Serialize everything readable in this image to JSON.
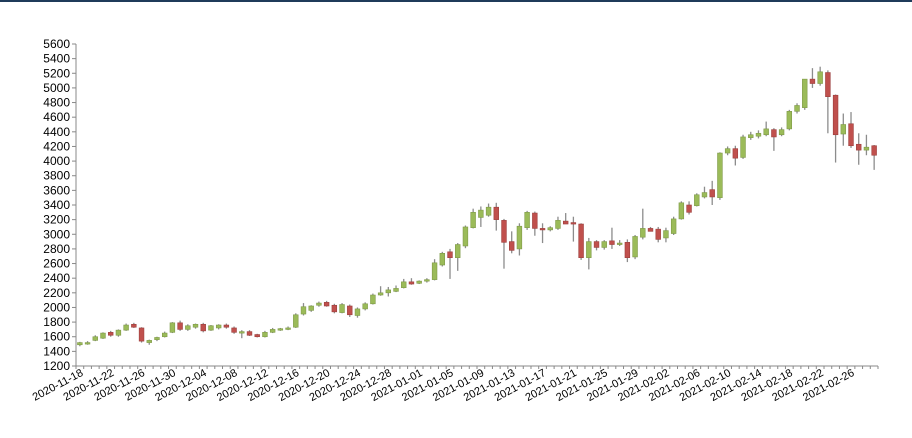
{
  "colors": {
    "top_rule": "#1f3b5a",
    "up": "#9bbb59",
    "up_border": "#7f9a48",
    "down": "#c0504d",
    "down_border": "#9c3f3d",
    "wick": "#8c8c8c",
    "axis": "#888888"
  },
  "chart_data": {
    "type": "candlestick",
    "title": "",
    "xlabel": "",
    "ylabel": "",
    "ylim": [
      1200,
      5600
    ],
    "ytick_step": 200,
    "grid": false,
    "legend": "none",
    "x_tick_labels": [
      "2020-11-18",
      "2020-11-22",
      "2020-11-26",
      "2020-11-30",
      "2020-12-04",
      "2020-12-08",
      "2020-12-12",
      "2020-12-16",
      "2020-12-20",
      "2020-12-24",
      "2020-12-28",
      "2021-01-01",
      "2021-01-05",
      "2021-01-09",
      "2021-01-13",
      "2021-01-17",
      "2021-01-21",
      "2021-01-25",
      "2021-01-29",
      "2021-02-02",
      "2021-02-06",
      "2021-02-10",
      "2021-02-14",
      "2021-02-18",
      "2021-02-22",
      "2021-02-26"
    ],
    "candles": [
      {
        "date": "2020-11-18",
        "open": 1490,
        "high": 1530,
        "low": 1470,
        "close": 1520
      },
      {
        "date": "2020-11-19",
        "open": 1500,
        "high": 1540,
        "low": 1490,
        "close": 1520
      },
      {
        "date": "2020-11-20",
        "open": 1550,
        "high": 1620,
        "low": 1540,
        "close": 1600
      },
      {
        "date": "2020-11-21",
        "open": 1580,
        "high": 1660,
        "low": 1570,
        "close": 1650
      },
      {
        "date": "2020-11-22",
        "open": 1660,
        "high": 1680,
        "low": 1600,
        "close": 1620
      },
      {
        "date": "2020-11-23",
        "open": 1620,
        "high": 1700,
        "low": 1600,
        "close": 1690
      },
      {
        "date": "2020-11-24",
        "open": 1690,
        "high": 1780,
        "low": 1680,
        "close": 1760
      },
      {
        "date": "2020-11-25",
        "open": 1770,
        "high": 1790,
        "low": 1720,
        "close": 1730
      },
      {
        "date": "2020-11-26",
        "open": 1720,
        "high": 1730,
        "low": 1520,
        "close": 1540
      },
      {
        "date": "2020-11-27",
        "open": 1520,
        "high": 1560,
        "low": 1490,
        "close": 1550
      },
      {
        "date": "2020-11-28",
        "open": 1560,
        "high": 1600,
        "low": 1540,
        "close": 1590
      },
      {
        "date": "2020-11-29",
        "open": 1600,
        "high": 1670,
        "low": 1590,
        "close": 1650
      },
      {
        "date": "2020-11-30",
        "open": 1660,
        "high": 1800,
        "low": 1650,
        "close": 1790
      },
      {
        "date": "2020-12-01",
        "open": 1790,
        "high": 1820,
        "low": 1680,
        "close": 1700
      },
      {
        "date": "2020-12-02",
        "open": 1700,
        "high": 1770,
        "low": 1680,
        "close": 1750
      },
      {
        "date": "2020-12-03",
        "open": 1730,
        "high": 1780,
        "low": 1710,
        "close": 1770
      },
      {
        "date": "2020-12-04",
        "open": 1770,
        "high": 1790,
        "low": 1660,
        "close": 1680
      },
      {
        "date": "2020-12-05",
        "open": 1690,
        "high": 1760,
        "low": 1680,
        "close": 1750
      },
      {
        "date": "2020-12-06",
        "open": 1720,
        "high": 1770,
        "low": 1700,
        "close": 1760
      },
      {
        "date": "2020-12-07",
        "open": 1760,
        "high": 1780,
        "low": 1710,
        "close": 1730
      },
      {
        "date": "2020-12-08",
        "open": 1720,
        "high": 1740,
        "low": 1640,
        "close": 1660
      },
      {
        "date": "2020-12-09",
        "open": 1650,
        "high": 1690,
        "low": 1580,
        "close": 1670
      },
      {
        "date": "2020-12-10",
        "open": 1670,
        "high": 1690,
        "low": 1610,
        "close": 1620
      },
      {
        "date": "2020-12-11",
        "open": 1630,
        "high": 1640,
        "low": 1590,
        "close": 1600
      },
      {
        "date": "2020-12-12",
        "open": 1600,
        "high": 1680,
        "low": 1590,
        "close": 1660
      },
      {
        "date": "2020-12-13",
        "open": 1660,
        "high": 1720,
        "low": 1650,
        "close": 1700
      },
      {
        "date": "2020-12-14",
        "open": 1690,
        "high": 1720,
        "low": 1680,
        "close": 1710
      },
      {
        "date": "2020-12-15",
        "open": 1700,
        "high": 1740,
        "low": 1690,
        "close": 1720
      },
      {
        "date": "2020-12-16",
        "open": 1730,
        "high": 1920,
        "low": 1720,
        "close": 1900
      },
      {
        "date": "2020-12-17",
        "open": 1910,
        "high": 2060,
        "low": 1890,
        "close": 2010
      },
      {
        "date": "2020-12-18",
        "open": 1960,
        "high": 2030,
        "low": 1940,
        "close": 2020
      },
      {
        "date": "2020-12-19",
        "open": 2030,
        "high": 2080,
        "low": 2010,
        "close": 2060
      },
      {
        "date": "2020-12-20",
        "open": 2070,
        "high": 2090,
        "low": 2010,
        "close": 2020
      },
      {
        "date": "2020-12-21",
        "open": 2030,
        "high": 2050,
        "low": 1920,
        "close": 1940
      },
      {
        "date": "2020-12-22",
        "open": 1930,
        "high": 2060,
        "low": 1920,
        "close": 2040
      },
      {
        "date": "2020-12-23",
        "open": 2020,
        "high": 2040,
        "low": 1870,
        "close": 1900
      },
      {
        "date": "2020-12-24",
        "open": 1890,
        "high": 2000,
        "low": 1860,
        "close": 1980
      },
      {
        "date": "2020-12-25",
        "open": 1980,
        "high": 2070,
        "low": 1960,
        "close": 2050
      },
      {
        "date": "2020-12-26",
        "open": 2050,
        "high": 2190,
        "low": 2040,
        "close": 2170
      },
      {
        "date": "2020-12-27",
        "open": 2170,
        "high": 2290,
        "low": 2160,
        "close": 2200
      },
      {
        "date": "2020-12-28",
        "open": 2200,
        "high": 2280,
        "low": 2150,
        "close": 2240
      },
      {
        "date": "2020-12-29",
        "open": 2220,
        "high": 2300,
        "low": 2210,
        "close": 2260
      },
      {
        "date": "2020-12-30",
        "open": 2270,
        "high": 2390,
        "low": 2260,
        "close": 2350
      },
      {
        "date": "2020-12-31",
        "open": 2350,
        "high": 2400,
        "low": 2310,
        "close": 2320
      },
      {
        "date": "2021-01-01",
        "open": 2330,
        "high": 2370,
        "low": 2320,
        "close": 2360
      },
      {
        "date": "2021-01-02",
        "open": 2360,
        "high": 2400,
        "low": 2340,
        "close": 2380
      },
      {
        "date": "2021-01-03",
        "open": 2380,
        "high": 2660,
        "low": 2370,
        "close": 2610
      },
      {
        "date": "2021-01-04",
        "open": 2580,
        "high": 2760,
        "low": 2560,
        "close": 2740
      },
      {
        "date": "2021-01-05",
        "open": 2760,
        "high": 2800,
        "low": 2390,
        "close": 2680
      },
      {
        "date": "2021-01-06",
        "open": 2680,
        "high": 2880,
        "low": 2500,
        "close": 2860
      },
      {
        "date": "2021-01-07",
        "open": 2840,
        "high": 3120,
        "low": 2810,
        "close": 3100
      },
      {
        "date": "2021-01-08",
        "open": 3090,
        "high": 3350,
        "low": 3080,
        "close": 3300
      },
      {
        "date": "2021-01-09",
        "open": 3230,
        "high": 3380,
        "low": 3100,
        "close": 3330
      },
      {
        "date": "2021-01-10",
        "open": 3260,
        "high": 3420,
        "low": 3240,
        "close": 3370
      },
      {
        "date": "2021-01-11",
        "open": 3370,
        "high": 3430,
        "low": 3050,
        "close": 3200
      },
      {
        "date": "2021-01-12",
        "open": 3190,
        "high": 3210,
        "low": 2530,
        "close": 2890
      },
      {
        "date": "2021-01-13",
        "open": 2900,
        "high": 3040,
        "low": 2740,
        "close": 2780
      },
      {
        "date": "2021-01-14",
        "open": 2800,
        "high": 3150,
        "low": 2710,
        "close": 3110
      },
      {
        "date": "2021-01-15",
        "open": 3090,
        "high": 3320,
        "low": 3060,
        "close": 3300
      },
      {
        "date": "2021-01-16",
        "open": 3290,
        "high": 3310,
        "low": 2980,
        "close": 3080
      },
      {
        "date": "2021-01-17",
        "open": 3080,
        "high": 3150,
        "low": 2880,
        "close": 3060
      },
      {
        "date": "2021-01-18",
        "open": 3060,
        "high": 3110,
        "low": 3040,
        "close": 3090
      },
      {
        "date": "2021-01-19",
        "open": 3080,
        "high": 3240,
        "low": 3060,
        "close": 3190
      },
      {
        "date": "2021-01-20",
        "open": 3180,
        "high": 3290,
        "low": 3150,
        "close": 3140
      },
      {
        "date": "2021-01-21",
        "open": 3160,
        "high": 3240,
        "low": 2900,
        "close": 3140
      },
      {
        "date": "2021-01-22",
        "open": 3140,
        "high": 3150,
        "low": 2650,
        "close": 2680
      },
      {
        "date": "2021-01-23",
        "open": 2680,
        "high": 2950,
        "low": 2520,
        "close": 2900
      },
      {
        "date": "2021-01-24",
        "open": 2900,
        "high": 2920,
        "low": 2780,
        "close": 2820
      },
      {
        "date": "2021-01-25",
        "open": 2820,
        "high": 2920,
        "low": 2790,
        "close": 2900
      },
      {
        "date": "2021-01-26",
        "open": 2910,
        "high": 3090,
        "low": 2800,
        "close": 2860
      },
      {
        "date": "2021-01-27",
        "open": 2860,
        "high": 2920,
        "low": 2840,
        "close": 2880
      },
      {
        "date": "2021-01-28",
        "open": 2890,
        "high": 2930,
        "low": 2620,
        "close": 2680
      },
      {
        "date": "2021-01-29",
        "open": 2690,
        "high": 2990,
        "low": 2660,
        "close": 2970
      },
      {
        "date": "2021-01-30",
        "open": 2960,
        "high": 3350,
        "low": 2930,
        "close": 3080
      },
      {
        "date": "2021-01-31",
        "open": 3080,
        "high": 3100,
        "low": 3050,
        "close": 3040
      },
      {
        "date": "2021-02-01",
        "open": 3070,
        "high": 3100,
        "low": 2890,
        "close": 2930
      },
      {
        "date": "2021-02-02",
        "open": 2950,
        "high": 3090,
        "low": 2890,
        "close": 3050
      },
      {
        "date": "2021-02-03",
        "open": 3010,
        "high": 3240,
        "low": 2990,
        "close": 3210
      },
      {
        "date": "2021-02-04",
        "open": 3210,
        "high": 3450,
        "low": 3200,
        "close": 3430
      },
      {
        "date": "2021-02-05",
        "open": 3400,
        "high": 3450,
        "low": 3270,
        "close": 3300
      },
      {
        "date": "2021-02-06",
        "open": 3390,
        "high": 3560,
        "low": 3380,
        "close": 3540
      },
      {
        "date": "2021-02-07",
        "open": 3510,
        "high": 3650,
        "low": 3490,
        "close": 3570
      },
      {
        "date": "2021-02-08",
        "open": 3610,
        "high": 3730,
        "low": 3400,
        "close": 3510
      },
      {
        "date": "2021-02-09",
        "open": 3500,
        "high": 4120,
        "low": 3470,
        "close": 4110
      },
      {
        "date": "2021-02-10",
        "open": 4110,
        "high": 4200,
        "low": 4080,
        "close": 4170
      },
      {
        "date": "2021-02-11",
        "open": 4170,
        "high": 4210,
        "low": 3940,
        "close": 4040
      },
      {
        "date": "2021-02-12",
        "open": 4050,
        "high": 4360,
        "low": 4030,
        "close": 4330
      },
      {
        "date": "2021-02-13",
        "open": 4320,
        "high": 4400,
        "low": 4290,
        "close": 4360
      },
      {
        "date": "2021-02-14",
        "open": 4340,
        "high": 4420,
        "low": 4310,
        "close": 4380
      },
      {
        "date": "2021-02-15",
        "open": 4360,
        "high": 4540,
        "low": 4340,
        "close": 4440
      },
      {
        "date": "2021-02-16",
        "open": 4430,
        "high": 4450,
        "low": 4140,
        "close": 4330
      },
      {
        "date": "2021-02-17",
        "open": 4360,
        "high": 4460,
        "low": 4340,
        "close": 4430
      },
      {
        "date": "2021-02-18",
        "open": 4440,
        "high": 4700,
        "low": 4420,
        "close": 4680
      },
      {
        "date": "2021-02-19",
        "open": 4680,
        "high": 4790,
        "low": 4650,
        "close": 4760
      },
      {
        "date": "2021-02-20",
        "open": 4730,
        "high": 5120,
        "low": 4700,
        "close": 5120
      },
      {
        "date": "2021-02-21",
        "open": 5120,
        "high": 5270,
        "low": 5000,
        "close": 5060
      },
      {
        "date": "2021-02-22",
        "open": 5060,
        "high": 5290,
        "low": 5030,
        "close": 5220
      },
      {
        "date": "2021-02-23",
        "open": 5210,
        "high": 5240,
        "low": 4380,
        "close": 4880
      },
      {
        "date": "2021-02-24",
        "open": 4900,
        "high": 4910,
        "low": 3980,
        "close": 4360
      },
      {
        "date": "2021-02-25",
        "open": 4370,
        "high": 4650,
        "low": 4210,
        "close": 4500
      },
      {
        "date": "2021-02-26",
        "open": 4510,
        "high": 4670,
        "low": 4180,
        "close": 4210
      },
      {
        "date": "2021-02-27",
        "open": 4230,
        "high": 4380,
        "low": 3950,
        "close": 4150
      },
      {
        "date": "2021-02-28",
        "open": 4150,
        "high": 4360,
        "low": 4080,
        "close": 4190
      },
      {
        "date": "2021-03-01",
        "open": 4210,
        "high": 4220,
        "low": 3880,
        "close": 4080
      }
    ]
  }
}
